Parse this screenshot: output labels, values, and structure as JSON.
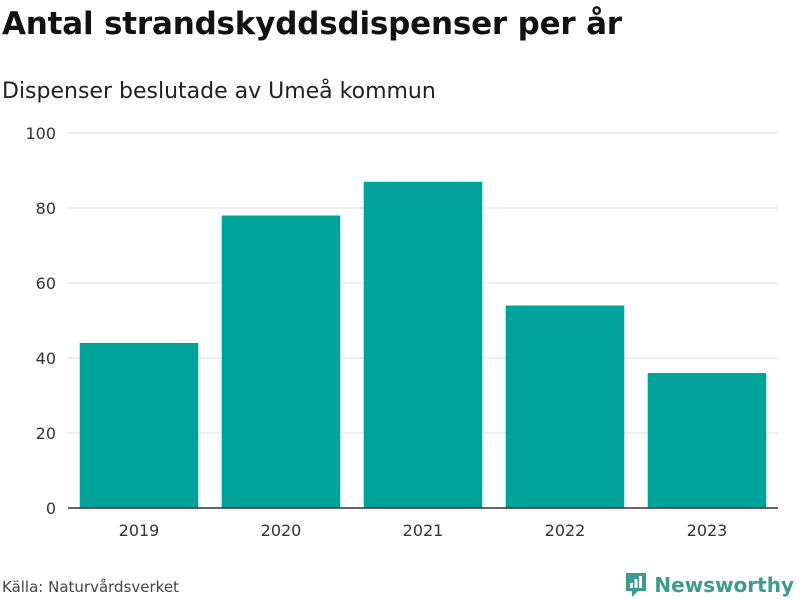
{
  "title": "Antal strandskyddsdispenser per år",
  "subtitle": "Dispenser beslutade av Umeå kommun",
  "source": "Källa: Naturvårdsverket",
  "brand": "Newsworthy",
  "colors": {
    "bar": "#00a39a",
    "grid": "#dcdcdc",
    "axis": "#333333",
    "brand": "#3a9b8e"
  },
  "chart_data": {
    "type": "bar",
    "categories": [
      "2019",
      "2020",
      "2021",
      "2022",
      "2023"
    ],
    "values": [
      44,
      78,
      87,
      54,
      36
    ],
    "ylim": [
      0,
      100
    ],
    "yticks": [
      0,
      20,
      40,
      60,
      80,
      100
    ],
    "title": "Antal strandskyddsdispenser per år",
    "xlabel": "",
    "ylabel": "",
    "grid": true
  }
}
